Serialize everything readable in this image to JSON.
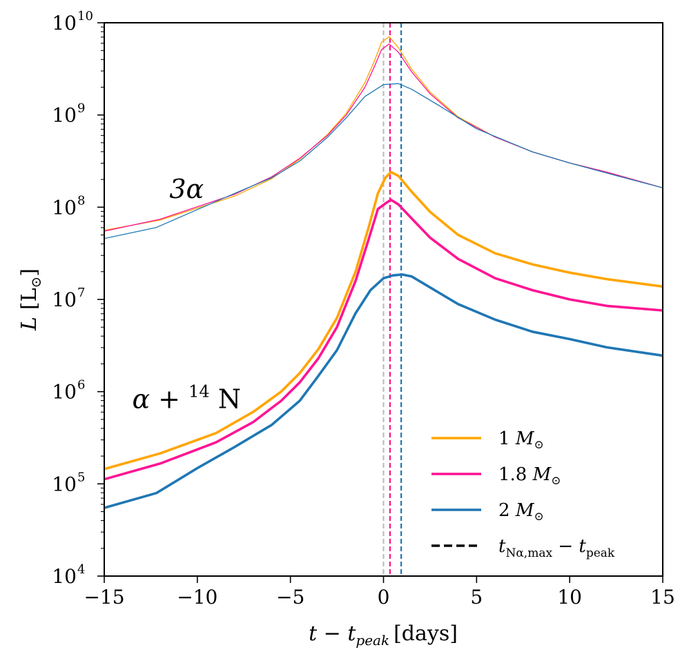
{
  "chart_data": {
    "type": "line",
    "title": "",
    "xlabel": {
      "text": "t − t",
      "sub": "peak",
      "unit": "[days]"
    },
    "ylabel": {
      "text": "L",
      "unit": "[L",
      "sub": "⊙",
      "close": "]"
    },
    "xlim": [
      -15,
      15
    ],
    "ylim_log10": [
      4,
      10
    ],
    "yscale": "log",
    "x_ticks": [
      -15,
      -10,
      -5,
      0,
      5,
      10,
      15
    ],
    "x_tick_labels": [
      "−15",
      "−10",
      "−5",
      "0",
      "5",
      "10",
      "15"
    ],
    "y_ticks_exp": [
      4,
      5,
      6,
      7,
      8,
      9,
      10
    ],
    "y_tick_base": "10",
    "y_tick_exp_labels": [
      "4",
      "5",
      "6",
      "7",
      "8",
      "9",
      "10"
    ],
    "annotations": {
      "triple_alpha": {
        "text": "3α",
        "x": -11.5,
        "y_log": 8.1
      },
      "alpha_n14": {
        "prefix": "α + ",
        "sup": "14",
        "suffix": " N",
        "x": -13.5,
        "y_log": 5.82
      }
    },
    "peak_lines": [
      {
        "name": "ref",
        "x": 0.0,
        "color": "#bdbdbd"
      },
      {
        "name": "1 Msun",
        "x": 0.35,
        "color": "#ffa500"
      },
      {
        "name": "1.8 Msun",
        "x": 0.35,
        "color": "#ff1493"
      },
      {
        "name": "2 Msun",
        "x": 0.95,
        "color": "#1f77b4"
      }
    ],
    "series": [
      {
        "name": "3α 1 M⊙",
        "group": "triple_alpha",
        "color": "#ffa500",
        "width": 1.3,
        "x": [
          -15,
          -12,
          -8,
          -6,
          -4.5,
          -3,
          -2,
          -1,
          -0.5,
          -0.1,
          0.3,
          0.8,
          1.5,
          2.5,
          4,
          6,
          8,
          10,
          12,
          15
        ],
        "y_log": [
          7.75,
          7.86,
          8.12,
          8.31,
          8.52,
          8.79,
          9.02,
          9.35,
          9.58,
          9.79,
          9.85,
          9.73,
          9.5,
          9.25,
          8.98,
          8.76,
          8.6,
          8.48,
          8.38,
          8.21
        ]
      },
      {
        "name": "3α 1.8 M⊙",
        "group": "triple_alpha",
        "color": "#ff1493",
        "width": 1.3,
        "x": [
          -15,
          -12,
          -8,
          -6,
          -4.5,
          -3,
          -2,
          -1,
          -0.5,
          -0.1,
          0.3,
          0.8,
          1.5,
          2.5,
          4,
          6,
          8,
          10,
          12,
          15
        ],
        "y_log": [
          7.74,
          7.87,
          8.14,
          8.33,
          8.53,
          8.78,
          9.0,
          9.3,
          9.52,
          9.71,
          9.77,
          9.68,
          9.47,
          9.23,
          8.97,
          8.76,
          8.6,
          8.48,
          8.38,
          8.21
        ]
      },
      {
        "name": "3α 2 M⊙",
        "group": "triple_alpha",
        "color": "#1f77b4",
        "width": 1.3,
        "x": [
          -15,
          -12.2,
          -8,
          -6,
          -4.5,
          -3,
          -2,
          -1,
          0,
          0.8,
          1.5,
          3,
          5,
          8,
          10,
          12,
          15
        ],
        "y_log": [
          7.66,
          7.78,
          8.15,
          8.32,
          8.5,
          8.76,
          8.97,
          9.2,
          9.33,
          9.34,
          9.28,
          9.1,
          8.85,
          8.6,
          8.48,
          8.37,
          8.21
        ]
      },
      {
        "name": "1 M⊙",
        "group": "alpha_n14",
        "color": "#ffa500",
        "width": 3.6,
        "legend": true,
        "legend_label": "1 ",
        "legend_unit": "M",
        "legend_sub": "⊙",
        "x": [
          -15,
          -12,
          -9,
          -7,
          -5.5,
          -4.5,
          -3.5,
          -2.5,
          -1.5,
          -0.8,
          -0.3,
          0.1,
          0.4,
          0.8,
          1.5,
          2.5,
          4,
          6,
          8,
          10,
          12,
          15
        ],
        "y_log": [
          5.16,
          5.33,
          5.55,
          5.78,
          6.0,
          6.2,
          6.46,
          6.8,
          7.3,
          7.78,
          8.15,
          8.32,
          8.38,
          8.34,
          8.17,
          7.95,
          7.7,
          7.5,
          7.38,
          7.29,
          7.22,
          7.14
        ]
      },
      {
        "name": "1.8 M⊙",
        "group": "alpha_n14",
        "color": "#ff1493",
        "width": 3.6,
        "legend": true,
        "legend_label": "1.8 ",
        "legend_unit": "M",
        "legend_sub": "⊙",
        "x": [
          -15,
          -12,
          -9,
          -7,
          -5.5,
          -4.5,
          -3.5,
          -2.5,
          -1.5,
          -0.8,
          -0.3,
          0.1,
          0.4,
          0.8,
          1.5,
          2.5,
          4,
          6,
          8,
          10,
          12,
          15
        ],
        "y_log": [
          5.05,
          5.22,
          5.45,
          5.67,
          5.9,
          6.1,
          6.36,
          6.7,
          7.2,
          7.65,
          7.98,
          8.04,
          8.08,
          8.03,
          7.88,
          7.67,
          7.44,
          7.23,
          7.1,
          7.0,
          6.93,
          6.88
        ]
      },
      {
        "name": "2 M⊙",
        "group": "alpha_n14",
        "color": "#1f77b4",
        "width": 3.6,
        "legend": true,
        "legend_label": "2 ",
        "legend_unit": "M",
        "legend_sub": "⊙",
        "x": [
          -15,
          -12.2,
          -10,
          -8,
          -6,
          -4.5,
          -3.5,
          -2.5,
          -1.5,
          -0.7,
          0,
          0.5,
          1,
          1.5,
          2.5,
          4,
          6,
          8,
          10,
          12,
          15
        ],
        "y_log": [
          4.74,
          4.9,
          5.17,
          5.4,
          5.64,
          5.9,
          6.17,
          6.45,
          6.85,
          7.1,
          7.23,
          7.26,
          7.27,
          7.25,
          7.13,
          6.95,
          6.78,
          6.65,
          6.57,
          6.48,
          6.39
        ]
      }
    ],
    "legend": {
      "position": "lower-right",
      "dashed_entry": {
        "color": "#000000",
        "label": "t",
        "sub": "Nα,max",
        "minus": " − t",
        "sub2": "peak"
      }
    }
  }
}
